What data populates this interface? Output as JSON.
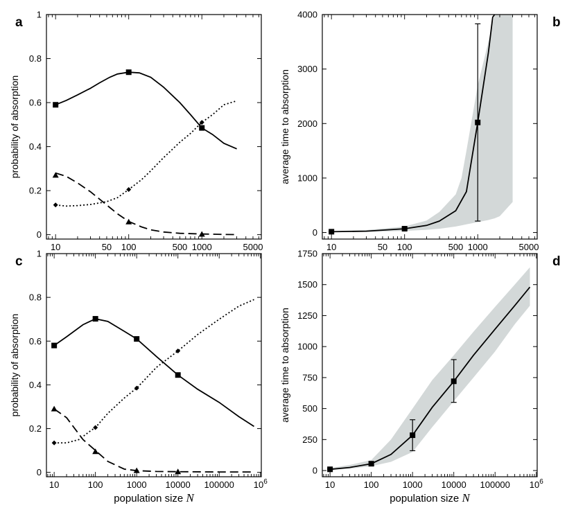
{
  "chart_data": [
    {
      "id": "a",
      "panel_label": "a",
      "type": "line",
      "x_scale": "log",
      "xlim": [
        7.5,
        6500
      ],
      "ylim": [
        -0.02,
        1.0
      ],
      "xlabel": "",
      "ylabel": "probability of absorption",
      "xticks": [
        {
          "value": 10,
          "label": "10"
        },
        {
          "value": 50,
          "label": "50"
        },
        {
          "value": 100,
          "label": "100"
        },
        {
          "value": 500,
          "label": "500"
        },
        {
          "value": 1000,
          "label": "1000"
        },
        {
          "value": 5000,
          "label": "5000"
        }
      ],
      "yticks": [
        {
          "value": 0,
          "label": "0"
        },
        {
          "value": 0.2,
          "label": "0.2"
        },
        {
          "value": 0.4,
          "label": "0.4"
        },
        {
          "value": 0.6,
          "label": "0.6"
        },
        {
          "value": 0.8,
          "label": "0.8"
        },
        {
          "value": 1,
          "label": "1"
        }
      ],
      "series": [
        {
          "name": "solid",
          "style": "solid",
          "marker": "square",
          "x": [
            10,
            14,
            20,
            30,
            40,
            55,
            70,
            100,
            140,
            200,
            300,
            500,
            700,
            1000,
            1400,
            2000,
            3000
          ],
          "y": [
            0.59,
            0.61,
            0.635,
            0.665,
            0.69,
            0.715,
            0.73,
            0.738,
            0.735,
            0.715,
            0.67,
            0.6,
            0.545,
            0.485,
            0.455,
            0.415,
            0.39
          ],
          "marker_x": [
            10,
            100,
            1000
          ],
          "marker_y": [
            0.59,
            0.738,
            0.485
          ]
        },
        {
          "name": "dotted",
          "style": "dotted",
          "marker": "diamond",
          "x": [
            10,
            14,
            20,
            30,
            50,
            70,
            100,
            150,
            200,
            300,
            500,
            700,
            1000,
            1400,
            2000,
            3000
          ],
          "y": [
            0.135,
            0.13,
            0.132,
            0.137,
            0.15,
            0.168,
            0.205,
            0.25,
            0.29,
            0.35,
            0.42,
            0.46,
            0.51,
            0.545,
            0.59,
            0.608
          ],
          "marker_x": [
            10,
            100,
            1000
          ],
          "marker_y": [
            0.135,
            0.205,
            0.51
          ]
        },
        {
          "name": "dashed",
          "style": "dashed",
          "marker": "triangle",
          "x": [
            10,
            14,
            20,
            30,
            50,
            70,
            100,
            150,
            200,
            300,
            500,
            1000,
            2000,
            3000
          ],
          "y": [
            0.28,
            0.265,
            0.235,
            0.195,
            0.135,
            0.095,
            0.06,
            0.035,
            0.022,
            0.012,
            0.006,
            0.003,
            0.001,
            0.0
          ],
          "marker_x": [
            10,
            100,
            1000
          ],
          "marker_y": [
            0.27,
            0.058,
            0.002
          ]
        }
      ]
    },
    {
      "id": "b",
      "panel_label": "b",
      "type": "line",
      "x_scale": "log",
      "xlim": [
        7.5,
        6500
      ],
      "ylim": [
        -120,
        4000
      ],
      "xlabel": "",
      "ylabel": "average time to absorption",
      "xticks": [
        {
          "value": 10,
          "label": "10"
        },
        {
          "value": 50,
          "label": "50"
        },
        {
          "value": 100,
          "label": "100"
        },
        {
          "value": 500,
          "label": "500"
        },
        {
          "value": 1000,
          "label": "1000"
        },
        {
          "value": 5000,
          "label": "5000"
        }
      ],
      "yticks": [
        {
          "value": 0,
          "label": "0"
        },
        {
          "value": 1000,
          "label": "1000"
        },
        {
          "value": 2000,
          "label": "2000"
        },
        {
          "value": 3000,
          "label": "3000"
        },
        {
          "value": 4000,
          "label": "4000"
        }
      ],
      "series": [
        {
          "name": "mean",
          "style": "solid",
          "marker": "square",
          "x": [
            10,
            30,
            100,
            200,
            300,
            500,
            700,
            1000,
            1400,
            1600,
            1700
          ],
          "y": [
            15,
            25,
            70,
            130,
            210,
            400,
            750,
            2020,
            3300,
            3950,
            4000
          ],
          "marker_x": [
            10,
            100,
            1000
          ],
          "marker_y": [
            15,
            70,
            2020
          ]
        }
      ],
      "band": {
        "x": [
          10,
          30,
          100,
          200,
          300,
          500,
          600,
          700,
          1000,
          1400,
          1700,
          2000,
          3000
        ],
        "upper": [
          25,
          45,
          110,
          220,
          380,
          700,
          1000,
          1500,
          2700,
          3500,
          4000,
          4000,
          4000
        ],
        "lower": [
          8,
          12,
          30,
          50,
          70,
          110,
          130,
          150,
          190,
          230,
          260,
          300,
          560
        ]
      },
      "error_bars": [
        {
          "x": 10,
          "low": 10,
          "high": 20
        },
        {
          "x": 100,
          "low": 50,
          "high": 90
        },
        {
          "x": 1000,
          "low": 210,
          "high": 3830
        }
      ]
    },
    {
      "id": "c",
      "panel_label": "c",
      "type": "line",
      "x_scale": "log",
      "xlim": [
        6.5,
        1050000
      ],
      "ylim": [
        -0.02,
        1.0
      ],
      "xlabel": "population size",
      "xlabel_var": "N",
      "ylabel": "probability of absorption",
      "xticks": [
        {
          "value": 10,
          "label": "10"
        },
        {
          "value": 100,
          "label": "100"
        },
        {
          "value": 1000,
          "label": "1000"
        },
        {
          "value": 10000,
          "label": "10000"
        },
        {
          "value": 100000,
          "label": "100000"
        },
        {
          "value": 1000000,
          "label": "10",
          "sup": "6"
        }
      ],
      "yticks": [
        {
          "value": 0,
          "label": "0"
        },
        {
          "value": 0.2,
          "label": "0.2"
        },
        {
          "value": 0.4,
          "label": "0.4"
        },
        {
          "value": 0.6,
          "label": "0.6"
        },
        {
          "value": 0.8,
          "label": "0.8"
        },
        {
          "value": 1,
          "label": "1"
        }
      ],
      "series": [
        {
          "name": "solid",
          "style": "solid",
          "marker": "square",
          "x": [
            10,
            20,
            50,
            100,
            200,
            500,
            1000,
            3000,
            10000,
            30000,
            100000,
            300000,
            700000
          ],
          "y": [
            0.58,
            0.62,
            0.675,
            0.702,
            0.69,
            0.645,
            0.61,
            0.53,
            0.445,
            0.38,
            0.32,
            0.255,
            0.21
          ],
          "marker_x": [
            10,
            100,
            1000,
            10000
          ],
          "marker_y": [
            0.58,
            0.702,
            0.61,
            0.445
          ]
        },
        {
          "name": "dotted",
          "style": "dotted",
          "marker": "diamond",
          "x": [
            10,
            20,
            40,
            70,
            100,
            200,
            500,
            1000,
            3000,
            10000,
            30000,
            100000,
            300000,
            700000
          ],
          "y": [
            0.135,
            0.135,
            0.15,
            0.185,
            0.205,
            0.27,
            0.34,
            0.385,
            0.48,
            0.555,
            0.63,
            0.7,
            0.76,
            0.79
          ],
          "marker_x": [
            10,
            100,
            1000,
            10000
          ],
          "marker_y": [
            0.135,
            0.205,
            0.385,
            0.555
          ]
        },
        {
          "name": "dashed",
          "style": "dashed",
          "marker": "triangle",
          "x": [
            10,
            20,
            50,
            100,
            200,
            500,
            1000,
            3000,
            10000,
            100000,
            700000
          ],
          "y": [
            0.29,
            0.25,
            0.15,
            0.1,
            0.05,
            0.015,
            0.008,
            0.004,
            0.003,
            0.002,
            0.002
          ],
          "marker_x": [
            10,
            100,
            1000,
            10000
          ],
          "marker_y": [
            0.29,
            0.095,
            0.008,
            0.003
          ]
        }
      ]
    },
    {
      "id": "d",
      "panel_label": "d",
      "type": "line",
      "x_scale": "log",
      "xlim": [
        6.5,
        1050000
      ],
      "ylim": [
        -50,
        1750
      ],
      "xlabel": "population size",
      "xlabel_var": "N",
      "ylabel": "average time to absorption",
      "xticks": [
        {
          "value": 10,
          "label": "10"
        },
        {
          "value": 100,
          "label": "100"
        },
        {
          "value": 1000,
          "label": "1000"
        },
        {
          "value": 10000,
          "label": "10000"
        },
        {
          "value": 100000,
          "label": "100000"
        },
        {
          "value": 1000000,
          "label": "10",
          "sup": "6"
        }
      ],
      "yticks": [
        {
          "value": 0,
          "label": "0"
        },
        {
          "value": 250,
          "label": "250"
        },
        {
          "value": 500,
          "label": "500"
        },
        {
          "value": 750,
          "label": "750"
        },
        {
          "value": 1000,
          "label": "1000"
        },
        {
          "value": 1250,
          "label": "1250"
        },
        {
          "value": 1500,
          "label": "1500"
        },
        {
          "value": 1750,
          "label": "1750"
        }
      ],
      "series": [
        {
          "name": "mean",
          "style": "solid",
          "marker": "square",
          "x": [
            10,
            30,
            100,
            300,
            1000,
            3000,
            10000,
            30000,
            100000,
            300000,
            700000
          ],
          "y": [
            10,
            25,
            55,
            130,
            285,
            510,
            720,
            930,
            1140,
            1330,
            1480
          ],
          "marker_x": [
            10,
            100,
            1000,
            10000
          ],
          "marker_y": [
            10,
            55,
            285,
            720
          ]
        }
      ],
      "band": {
        "x": [
          10,
          30,
          100,
          300,
          1000,
          3000,
          10000,
          30000,
          100000,
          300000,
          700000
        ],
        "upper": [
          20,
          45,
          85,
          250,
          500,
          730,
          930,
          1120,
          1320,
          1500,
          1640
        ],
        "lower": [
          5,
          15,
          35,
          70,
          150,
          350,
          560,
          750,
          960,
          1180,
          1330
        ]
      },
      "error_bars": [
        {
          "x": 10,
          "low": 5,
          "high": 15
        },
        {
          "x": 100,
          "low": 40,
          "high": 70
        },
        {
          "x": 1000,
          "low": 160,
          "high": 410
        },
        {
          "x": 10000,
          "low": 550,
          "high": 895
        }
      ]
    }
  ]
}
